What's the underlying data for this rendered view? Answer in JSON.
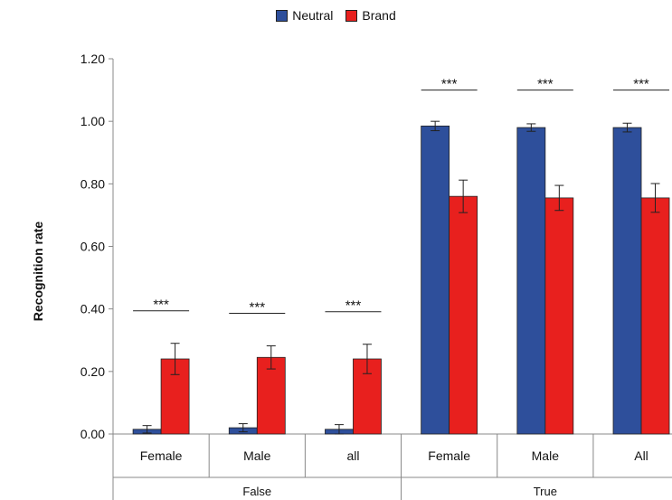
{
  "colors": {
    "neutral": "#2E4F9B",
    "brand": "#E8201E"
  },
  "chart_data": {
    "type": "bar",
    "title": "",
    "xlabel": "",
    "ylabel": "Recognition rate",
    "ylim": [
      0,
      1.2
    ],
    "yticks": [
      "0.00",
      "0.20",
      "0.40",
      "0.60",
      "0.80",
      "1.00",
      "1.20"
    ],
    "grid": false,
    "legend_position": "top-center",
    "categories": [
      "Female",
      "Male",
      "all",
      "Female",
      "Male",
      "All"
    ],
    "groups": [
      {
        "label": "False",
        "categories": [
          "Female",
          "Male",
          "all"
        ]
      },
      {
        "label": "True",
        "categories": [
          "Female",
          "Male",
          "All"
        ]
      }
    ],
    "series": [
      {
        "name": "Neutral",
        "color": "#2E4F9B",
        "values": [
          0.015,
          0.02,
          0.015,
          0.985,
          0.98,
          0.98
        ],
        "errors": [
          0.012,
          0.013,
          0.015,
          0.015,
          0.012,
          0.014
        ]
      },
      {
        "name": "Brand",
        "color": "#E8201E",
        "values": [
          0.24,
          0.245,
          0.24,
          0.76,
          0.755,
          0.755
        ],
        "errors": [
          0.05,
          0.037,
          0.047,
          0.052,
          0.04,
          0.046
        ]
      }
    ],
    "annotations": [
      "***",
      "***",
      "***",
      "***",
      "***",
      "***"
    ]
  }
}
